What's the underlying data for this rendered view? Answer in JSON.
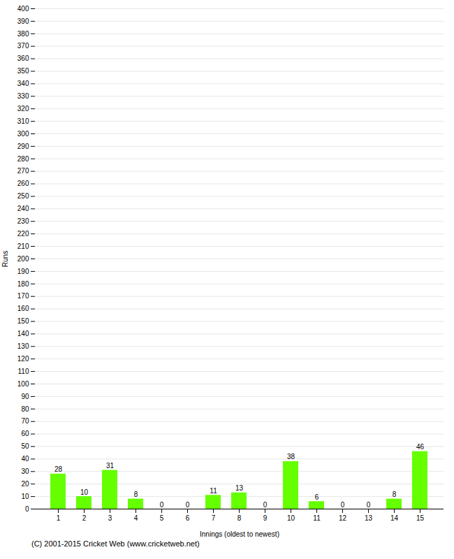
{
  "chart_data": {
    "type": "bar",
    "xlabel": "Innings (oldest to newest)",
    "ylabel": "Runs",
    "categories": [
      1,
      2,
      3,
      4,
      5,
      6,
      7,
      8,
      9,
      10,
      11,
      12,
      13,
      14,
      15
    ],
    "values": [
      28,
      10,
      31,
      8,
      0,
      0,
      11,
      13,
      0,
      38,
      6,
      0,
      0,
      8,
      46
    ],
    "color": "#66ff00",
    "ylim": [
      0,
      400
    ],
    "yticks": [
      0,
      10,
      20,
      30,
      40,
      50,
      60,
      70,
      80,
      90,
      100,
      110,
      120,
      130,
      140,
      150,
      160,
      170,
      180,
      190,
      200,
      210,
      220,
      230,
      240,
      250,
      260,
      270,
      280,
      290,
      300,
      310,
      320,
      330,
      340,
      350,
      360,
      370,
      380,
      390,
      400
    ],
    "grid": true,
    "data_labels": true,
    "footnote": "(C) 2001-2015 Cricket Web (www.cricketweb.net)"
  }
}
